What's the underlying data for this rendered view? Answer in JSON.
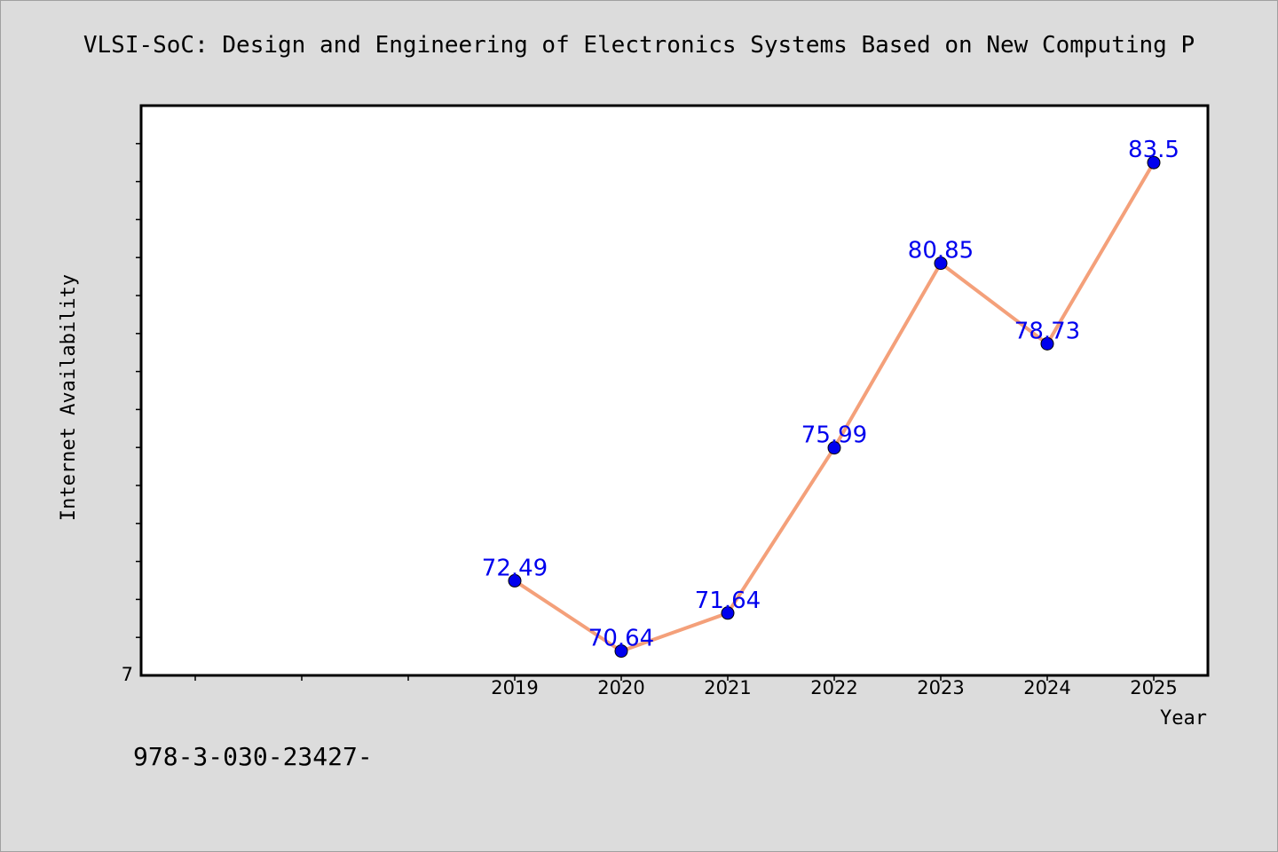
{
  "chart_data": {
    "type": "line",
    "title": "VLSI-SoC: Design and Engineering of Electronics Systems Based on New Computing P",
    "xlabel": "Year",
    "ylabel": "Internet Availability",
    "x": [
      "2019",
      "2020",
      "2021",
      "2022",
      "2023",
      "2024",
      "2025"
    ],
    "values": [
      72.49,
      70.64,
      71.64,
      75.99,
      80.85,
      78.73,
      83.5
    ],
    "data_labels": [
      "72.49",
      "70.64",
      "71.64",
      "75.99",
      "80.85",
      "78.73",
      "83.5"
    ],
    "ylim": [
      70,
      85
    ],
    "y_tick_labels": [
      "7"
    ],
    "grid": false,
    "legend": "none",
    "line_color": "#f4a07a",
    "marker_color": "#0000ee",
    "label_color": "#0000ee"
  },
  "footer": {
    "text": "978-3-030-23427-"
  }
}
